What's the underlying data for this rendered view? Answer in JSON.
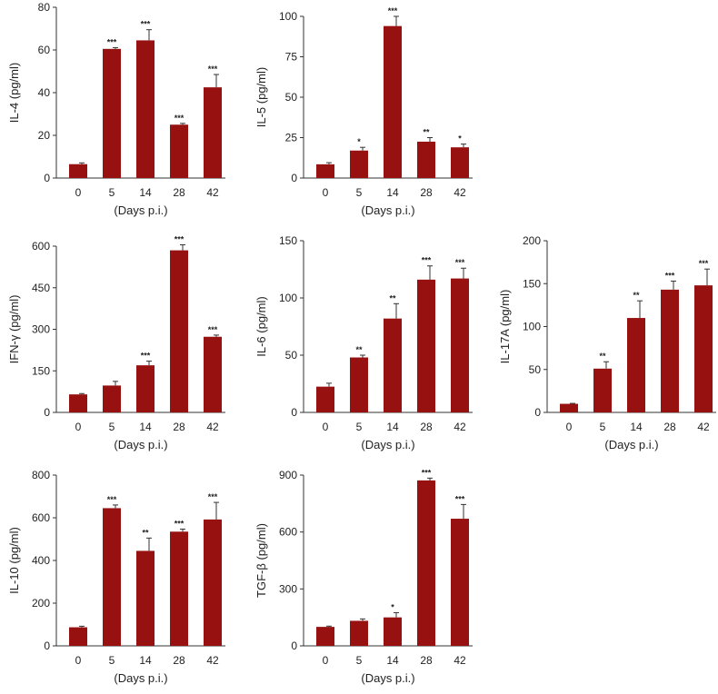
{
  "colors": {
    "bar": "#971111",
    "axis": "#333333",
    "text": "#222222"
  },
  "chart_data": [
    {
      "type": "bar",
      "categories": [
        "0",
        "5",
        "14",
        "28",
        "42"
      ],
      "values": [
        6.5,
        60.5,
        64.5,
        25,
        42.5
      ],
      "errors": [
        0.6,
        0.6,
        5,
        0.6,
        6
      ],
      "significance": [
        "",
        "***",
        "***",
        "***",
        "***"
      ],
      "ylabel": "IL-4 (pg/ml)",
      "xlabel": "(Days p.i.)",
      "ylim": [
        0,
        80
      ],
      "yticks": [
        0,
        20,
        40,
        60,
        80
      ]
    },
    {
      "type": "bar",
      "categories": [
        "0",
        "5",
        "14",
        "28",
        "42"
      ],
      "values": [
        8.5,
        17,
        94,
        22.5,
        19
      ],
      "errors": [
        1,
        2,
        6,
        2.5,
        2
      ],
      "significance": [
        "",
        "*",
        "***",
        "**",
        "*"
      ],
      "ylabel": "IL-5 (pg/ml)",
      "xlabel": "(Days p.i.)",
      "ylim": [
        0,
        100
      ],
      "yticks": [
        0,
        25,
        50,
        75,
        100
      ]
    },
    {
      "type": "bar",
      "categories": [
        "0",
        "5",
        "14",
        "28",
        "42"
      ],
      "values": [
        65,
        97,
        170,
        585,
        273
      ],
      "errors": [
        3,
        15,
        15,
        20,
        6
      ],
      "significance": [
        "",
        "",
        "***",
        "***",
        "***"
      ],
      "ylabel": "IFN-γ (pg/ml)",
      "xlabel": "(Days p.i.)",
      "ylim": [
        0,
        600
      ],
      "yticks": [
        0,
        150,
        300,
        450,
        600
      ]
    },
    {
      "type": "bar",
      "categories": [
        "0",
        "5",
        "14",
        "28",
        "42"
      ],
      "values": [
        22.5,
        48,
        82,
        116,
        117
      ],
      "errors": [
        3,
        2,
        13,
        12,
        9
      ],
      "significance": [
        "",
        "**",
        "**",
        "***",
        "***"
      ],
      "ylabel": "IL-6 (pg/ml)",
      "xlabel": "(Days p.i.)",
      "ylim": [
        0,
        150
      ],
      "yticks": [
        0,
        50,
        100,
        150
      ]
    },
    {
      "type": "bar",
      "categories": [
        "0",
        "5",
        "14",
        "28",
        "42"
      ],
      "values": [
        10,
        51,
        110,
        143,
        148
      ],
      "errors": [
        0.5,
        8,
        20,
        10,
        19
      ],
      "significance": [
        "",
        "**",
        "**",
        "***",
        "***"
      ],
      "ylabel": "IL-17A (pg/ml)",
      "xlabel": "(Days p.i.)",
      "ylim": [
        0,
        200
      ],
      "yticks": [
        0,
        50,
        100,
        150,
        200
      ]
    },
    {
      "type": "bar",
      "categories": [
        "0",
        "5",
        "14",
        "28",
        "42"
      ],
      "values": [
        87,
        645,
        445,
        535,
        592
      ],
      "errors": [
        5,
        15,
        60,
        12,
        80
      ],
      "significance": [
        "",
        "***",
        "**",
        "***",
        "***"
      ],
      "ylabel": "IL-10 (pg/ml)",
      "xlabel": "(Days p.i.)",
      "ylim": [
        0,
        800
      ],
      "yticks": [
        0,
        200,
        400,
        600,
        800
      ]
    },
    {
      "type": "bar",
      "categories": [
        "0",
        "5",
        "14",
        "28",
        "42"
      ],
      "values": [
        100,
        132,
        150,
        872,
        670
      ],
      "errors": [
        4,
        10,
        25,
        12,
        75
      ],
      "significance": [
        "",
        "",
        "*",
        "***",
        "***"
      ],
      "ylabel": "TGF-β (pg/ml)",
      "xlabel": "(Days p.i.)",
      "ylim": [
        0,
        900
      ],
      "yticks": [
        0,
        300,
        600,
        900
      ]
    }
  ]
}
